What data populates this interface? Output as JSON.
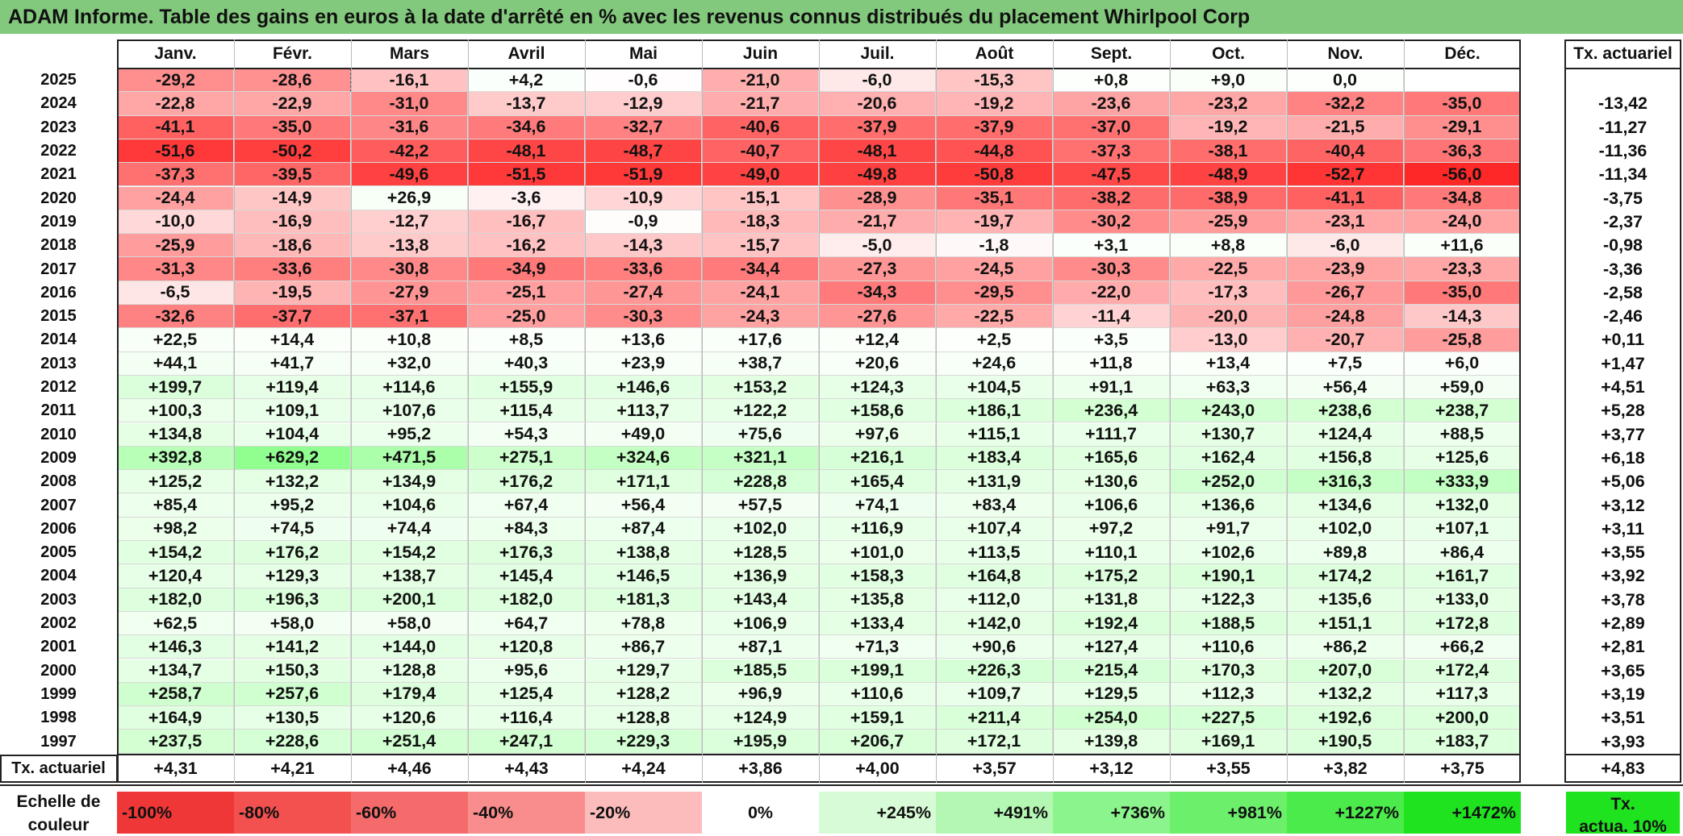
{
  "title": "ADAM Informe. Table des gains en euros à la date d'arrêté en % avec les revenus connus distribués du placement Whirlpool Corp",
  "months": [
    "Janv.",
    "Févr.",
    "Mars",
    "Avril",
    "Mai",
    "Juin",
    "Juil.",
    "Août",
    "Sept.",
    "Oct.",
    "Nov.",
    "Déc."
  ],
  "rate_header": "Tx. actuariel",
  "rows": [
    {
      "year": "2025",
      "values": [
        "-29,2",
        "-28,6",
        "-16,1",
        "+4,2",
        "-0,6",
        "-21,0",
        "-6,0",
        "-15,3",
        "+0,8",
        "+9,0",
        "0,0",
        ""
      ],
      "rate": ""
    },
    {
      "year": "2024",
      "values": [
        "-22,8",
        "-22,9",
        "-31,0",
        "-13,7",
        "-12,9",
        "-21,7",
        "-20,6",
        "-19,2",
        "-23,6",
        "-23,2",
        "-32,2",
        "-35,0"
      ],
      "rate": "-13,42"
    },
    {
      "year": "2023",
      "values": [
        "-41,1",
        "-35,0",
        "-31,6",
        "-34,6",
        "-32,7",
        "-40,6",
        "-37,9",
        "-37,9",
        "-37,0",
        "-19,2",
        "-21,5",
        "-29,1"
      ],
      "rate": "-11,27"
    },
    {
      "year": "2022",
      "values": [
        "-51,6",
        "-50,2",
        "-42,2",
        "-48,1",
        "-48,7",
        "-40,7",
        "-48,1",
        "-44,8",
        "-37,3",
        "-38,1",
        "-40,4",
        "-36,3"
      ],
      "rate": "-11,36"
    },
    {
      "year": "2021",
      "values": [
        "-37,3",
        "-39,5",
        "-49,6",
        "-51,5",
        "-51,9",
        "-49,0",
        "-49,8",
        "-50,8",
        "-47,5",
        "-48,9",
        "-52,7",
        "-56,0"
      ],
      "rate": "-11,34"
    },
    {
      "year": "2020",
      "values": [
        "-24,4",
        "-14,9",
        "+26,9",
        "-3,6",
        "-10,9",
        "-15,1",
        "-28,9",
        "-35,1",
        "-38,2",
        "-38,9",
        "-41,1",
        "-34,8"
      ],
      "rate": "-3,75"
    },
    {
      "year": "2019",
      "values": [
        "-10,0",
        "-16,9",
        "-12,7",
        "-16,7",
        "-0,9",
        "-18,3",
        "-21,7",
        "-19,7",
        "-30,2",
        "-25,9",
        "-23,1",
        "-24,0"
      ],
      "rate": "-2,37"
    },
    {
      "year": "2018",
      "values": [
        "-25,9",
        "-18,6",
        "-13,8",
        "-16,2",
        "-14,3",
        "-15,7",
        "-5,0",
        "-1,8",
        "+3,1",
        "+8,8",
        "-6,0",
        "+11,6"
      ],
      "rate": "-0,98"
    },
    {
      "year": "2017",
      "values": [
        "-31,3",
        "-33,6",
        "-30,8",
        "-34,9",
        "-33,6",
        "-34,4",
        "-27,3",
        "-24,5",
        "-30,3",
        "-22,5",
        "-23,9",
        "-23,3"
      ],
      "rate": "-3,36"
    },
    {
      "year": "2016",
      "values": [
        "-6,5",
        "-19,5",
        "-27,9",
        "-25,1",
        "-27,4",
        "-24,1",
        "-34,3",
        "-29,5",
        "-22,0",
        "-17,3",
        "-26,7",
        "-35,0"
      ],
      "rate": "-2,58"
    },
    {
      "year": "2015",
      "values": [
        "-32,6",
        "-37,7",
        "-37,1",
        "-25,0",
        "-30,3",
        "-24,3",
        "-27,6",
        "-22,5",
        "-11,4",
        "-20,0",
        "-24,8",
        "-14,3"
      ],
      "rate": "-2,46"
    },
    {
      "year": "2014",
      "values": [
        "+22,5",
        "+14,4",
        "+10,8",
        "+8,5",
        "+13,6",
        "+17,6",
        "+12,4",
        "+2,5",
        "+3,5",
        "-13,0",
        "-20,7",
        "-25,8"
      ],
      "rate": "+0,11"
    },
    {
      "year": "2013",
      "values": [
        "+44,1",
        "+41,7",
        "+32,0",
        "+40,3",
        "+23,9",
        "+38,7",
        "+20,6",
        "+24,6",
        "+11,8",
        "+13,4",
        "+7,5",
        "+6,0"
      ],
      "rate": "+1,47"
    },
    {
      "year": "2012",
      "values": [
        "+199,7",
        "+119,4",
        "+114,6",
        "+155,9",
        "+146,6",
        "+153,2",
        "+124,3",
        "+104,5",
        "+91,1",
        "+63,3",
        "+56,4",
        "+59,0"
      ],
      "rate": "+4,51"
    },
    {
      "year": "2011",
      "values": [
        "+100,3",
        "+109,1",
        "+107,6",
        "+115,4",
        "+113,7",
        "+122,2",
        "+158,6",
        "+186,1",
        "+236,4",
        "+243,0",
        "+238,6",
        "+238,7"
      ],
      "rate": "+5,28"
    },
    {
      "year": "2010",
      "values": [
        "+134,8",
        "+104,4",
        "+95,2",
        "+54,3",
        "+49,0",
        "+75,6",
        "+97,6",
        "+115,1",
        "+111,7",
        "+130,7",
        "+124,4",
        "+88,5"
      ],
      "rate": "+3,77"
    },
    {
      "year": "2009",
      "values": [
        "+392,8",
        "+629,2",
        "+471,5",
        "+275,1",
        "+324,6",
        "+321,1",
        "+216,1",
        "+183,4",
        "+165,6",
        "+162,4",
        "+156,8",
        "+125,6"
      ],
      "rate": "+6,18"
    },
    {
      "year": "2008",
      "values": [
        "+125,2",
        "+132,2",
        "+134,9",
        "+176,2",
        "+171,1",
        "+228,8",
        "+165,4",
        "+131,9",
        "+130,6",
        "+252,0",
        "+316,3",
        "+333,9"
      ],
      "rate": "+5,06"
    },
    {
      "year": "2007",
      "values": [
        "+85,4",
        "+95,2",
        "+104,6",
        "+67,4",
        "+56,4",
        "+57,5",
        "+74,1",
        "+83,4",
        "+106,6",
        "+136,6",
        "+134,6",
        "+132,0"
      ],
      "rate": "+3,12"
    },
    {
      "year": "2006",
      "values": [
        "+98,2",
        "+74,5",
        "+74,4",
        "+84,3",
        "+87,4",
        "+102,0",
        "+116,9",
        "+107,4",
        "+97,2",
        "+91,7",
        "+102,0",
        "+107,1"
      ],
      "rate": "+3,11"
    },
    {
      "year": "2005",
      "values": [
        "+154,2",
        "+176,2",
        "+154,2",
        "+176,3",
        "+138,8",
        "+128,5",
        "+101,0",
        "+113,5",
        "+110,1",
        "+102,6",
        "+89,8",
        "+86,4"
      ],
      "rate": "+3,55"
    },
    {
      "year": "2004",
      "values": [
        "+120,4",
        "+129,3",
        "+138,7",
        "+145,4",
        "+146,5",
        "+136,9",
        "+158,3",
        "+164,8",
        "+175,2",
        "+190,1",
        "+174,2",
        "+161,7"
      ],
      "rate": "+3,92"
    },
    {
      "year": "2003",
      "values": [
        "+182,0",
        "+196,3",
        "+200,1",
        "+182,0",
        "+181,3",
        "+143,4",
        "+135,8",
        "+112,0",
        "+131,8",
        "+122,3",
        "+135,6",
        "+133,0"
      ],
      "rate": "+3,78"
    },
    {
      "year": "2002",
      "values": [
        "+62,5",
        "+58,0",
        "+58,0",
        "+64,7",
        "+78,8",
        "+106,9",
        "+133,4",
        "+142,0",
        "+192,4",
        "+188,5",
        "+151,1",
        "+172,8"
      ],
      "rate": "+2,89"
    },
    {
      "year": "2001",
      "values": [
        "+146,3",
        "+141,2",
        "+144,0",
        "+120,8",
        "+86,7",
        "+87,1",
        "+71,3",
        "+90,6",
        "+127,4",
        "+110,6",
        "+86,2",
        "+66,2"
      ],
      "rate": "+2,81"
    },
    {
      "year": "2000",
      "values": [
        "+134,7",
        "+150,3",
        "+128,8",
        "+95,6",
        "+129,7",
        "+185,5",
        "+199,1",
        "+226,3",
        "+215,4",
        "+170,3",
        "+207,0",
        "+172,4"
      ],
      "rate": "+3,65"
    },
    {
      "year": "1999",
      "values": [
        "+258,7",
        "+257,6",
        "+179,4",
        "+125,4",
        "+128,2",
        "+96,9",
        "+110,6",
        "+109,7",
        "+129,5",
        "+112,3",
        "+132,2",
        "+117,3"
      ],
      "rate": "+3,19"
    },
    {
      "year": "1998",
      "values": [
        "+164,9",
        "+130,5",
        "+120,6",
        "+116,4",
        "+128,8",
        "+124,9",
        "+159,1",
        "+211,4",
        "+254,0",
        "+227,5",
        "+192,6",
        "+200,0"
      ],
      "rate": "+3,51"
    },
    {
      "year": "1997",
      "values": [
        "+237,5",
        "+228,6",
        "+251,4",
        "+247,1",
        "+229,3",
        "+195,9",
        "+206,7",
        "+172,1",
        "+139,8",
        "+169,1",
        "+190,5",
        "+183,7"
      ],
      "rate": "+3,93"
    }
  ],
  "footer": {
    "label": "Tx. actuariel",
    "values": [
      "+4,31",
      "+4,21",
      "+4,46",
      "+4,43",
      "+4,24",
      "+3,86",
      "+4,00",
      "+3,57",
      "+3,12",
      "+3,55",
      "+3,82",
      "+3,75"
    ],
    "rate": "+4,83"
  },
  "scale": {
    "label_line1": "Echelle de",
    "label_line2": "couleur",
    "items": [
      "-100%",
      "-80%",
      "-60%",
      "-40%",
      "-20%",
      "0%",
      "+245%",
      "+491%",
      "+736%",
      "+981%",
      "+1227%",
      "+1472%"
    ],
    "colors": [
      "#f03737",
      "#f35050",
      "#f56b6b",
      "#f98c8c",
      "#fcbcbc",
      "#ffffff",
      "#d6fbd6",
      "#b3f7b3",
      "#8cf48c",
      "#6cf06c",
      "#4aeb4a",
      "#1fe31f"
    ],
    "rate_line1": "Tx.",
    "rate_line2": "actua. 10%",
    "rate_color": "#1fe31f"
  }
}
